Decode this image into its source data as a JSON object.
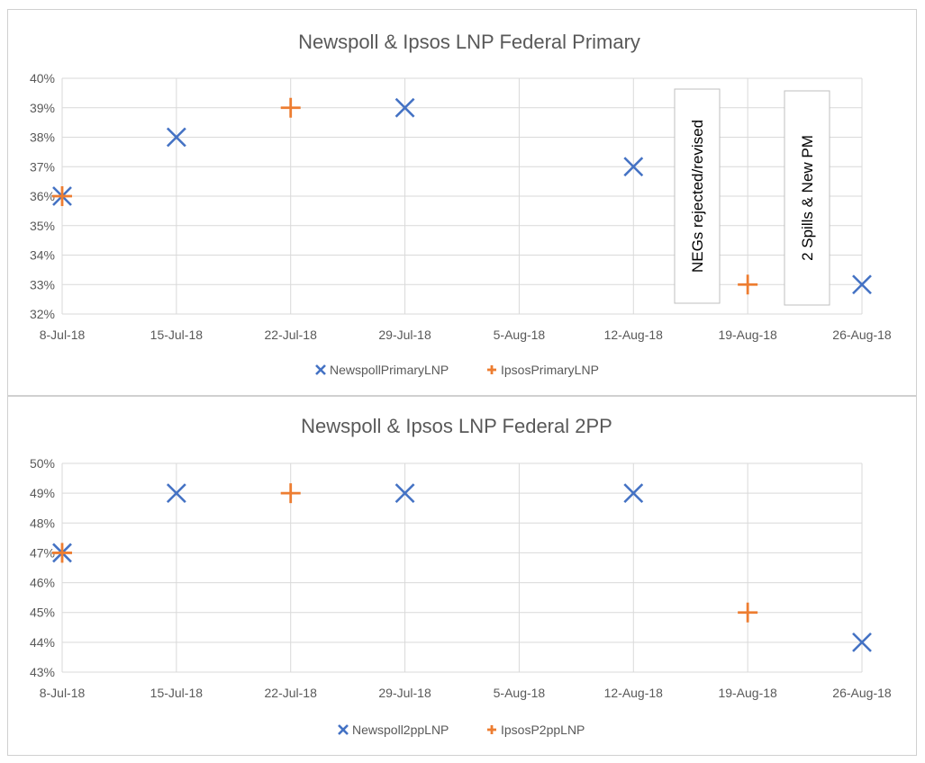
{
  "colors": {
    "newspoll": "#4472c4",
    "ipsos": "#ed7d31",
    "grid": "#d9d9d9",
    "text": "#595959"
  },
  "chart_data": [
    {
      "type": "scatter",
      "title": "Newspoll & Ipsos LNP Federal Primary",
      "x_ticks": [
        "8-Jul-18",
        "15-Jul-18",
        "22-Jul-18",
        "29-Jul-18",
        "5-Aug-18",
        "12-Aug-18",
        "19-Aug-18",
        "26-Aug-18"
      ],
      "xlim": [
        "8-Jul-18",
        "26-Aug-18"
      ],
      "y_ticks": [
        "32%",
        "33%",
        "34%",
        "35%",
        "36%",
        "37%",
        "38%",
        "39%",
        "40%"
      ],
      "ylim": [
        32,
        40
      ],
      "grid": true,
      "legend": "bottom",
      "series": [
        {
          "name": "NewspollPrimaryLNP",
          "marker": "x",
          "points": [
            {
              "x": "8-Jul-18",
              "y": 36
            },
            {
              "x": "15-Jul-18",
              "y": 38
            },
            {
              "x": "29-Jul-18",
              "y": 39
            },
            {
              "x": "12-Aug-18",
              "y": 37
            },
            {
              "x": "26-Aug-18",
              "y": 33
            }
          ]
        },
        {
          "name": "IpsosPrimaryLNP",
          "marker": "plus",
          "points": [
            {
              "x": "8-Jul-18",
              "y": 36
            },
            {
              "x": "22-Jul-18",
              "y": 39
            },
            {
              "x": "19-Aug-18",
              "y": 33
            }
          ]
        }
      ],
      "annotations": [
        {
          "text": "NEGs rejected/revised"
        },
        {
          "text": "2 Spills & New PM"
        }
      ]
    },
    {
      "type": "scatter",
      "title": "Newspoll & Ipsos LNP Federal 2PP",
      "x_ticks": [
        "8-Jul-18",
        "15-Jul-18",
        "22-Jul-18",
        "29-Jul-18",
        "5-Aug-18",
        "12-Aug-18",
        "19-Aug-18",
        "26-Aug-18"
      ],
      "xlim": [
        "8-Jul-18",
        "26-Aug-18"
      ],
      "y_ticks": [
        "43%",
        "44%",
        "45%",
        "46%",
        "47%",
        "48%",
        "49%",
        "50%"
      ],
      "ylim": [
        43,
        50
      ],
      "grid": true,
      "legend": "bottom",
      "series": [
        {
          "name": "Newspoll2ppLNP",
          "marker": "x",
          "points": [
            {
              "x": "8-Jul-18",
              "y": 47
            },
            {
              "x": "15-Jul-18",
              "y": 49
            },
            {
              "x": "29-Jul-18",
              "y": 49
            },
            {
              "x": "12-Aug-18",
              "y": 49
            },
            {
              "x": "26-Aug-18",
              "y": 44
            }
          ]
        },
        {
          "name": "IpsosP2ppLNP",
          "marker": "plus",
          "points": [
            {
              "x": "8-Jul-18",
              "y": 47
            },
            {
              "x": "22-Jul-18",
              "y": 49
            },
            {
              "x": "19-Aug-18",
              "y": 45
            }
          ]
        }
      ],
      "annotations": []
    }
  ]
}
